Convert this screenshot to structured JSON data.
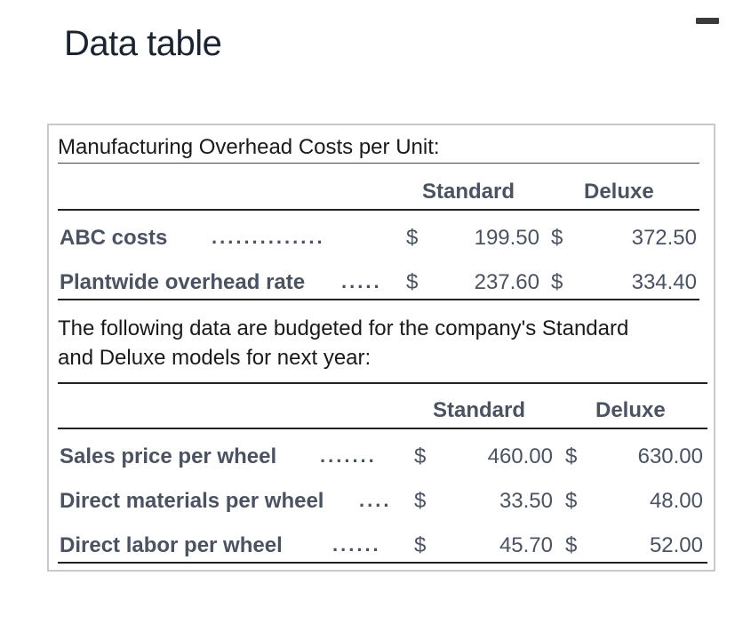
{
  "window": {
    "title": "Data table"
  },
  "section1": {
    "heading": "Manufacturing Overhead Costs per Unit:",
    "col_standard": "Standard",
    "col_deluxe": "Deluxe",
    "rows": [
      {
        "label": "ABC costs",
        "dots": "..............",
        "cur1": "$",
        "standard": "199.50",
        "cur2": "$",
        "deluxe": "372.50"
      },
      {
        "label": "Plantwide overhead rate",
        "dots": ".....",
        "cur1": "$",
        "standard": "237.60",
        "cur2": "$",
        "deluxe": "334.40"
      }
    ]
  },
  "note": {
    "line1": "The following data are budgeted for the company's Standard",
    "line2": "and Deluxe models for next year:"
  },
  "section2": {
    "col_standard": "Standard",
    "col_deluxe": "Deluxe",
    "rows": [
      {
        "label": "Sales price per wheel",
        "dots": ".......",
        "cur1": "$",
        "standard": "460.00",
        "cur2": "$",
        "deluxe": "630.00"
      },
      {
        "label": "Direct materials per wheel",
        "dots": "....",
        "cur1": "$",
        "standard": "33.50",
        "cur2": "$",
        "deluxe": "48.00"
      },
      {
        "label": "Direct labor per wheel",
        "dots": "......",
        "cur1": "$",
        "standard": "45.70",
        "cur2": "$",
        "deluxe": "52.00"
      }
    ]
  }
}
